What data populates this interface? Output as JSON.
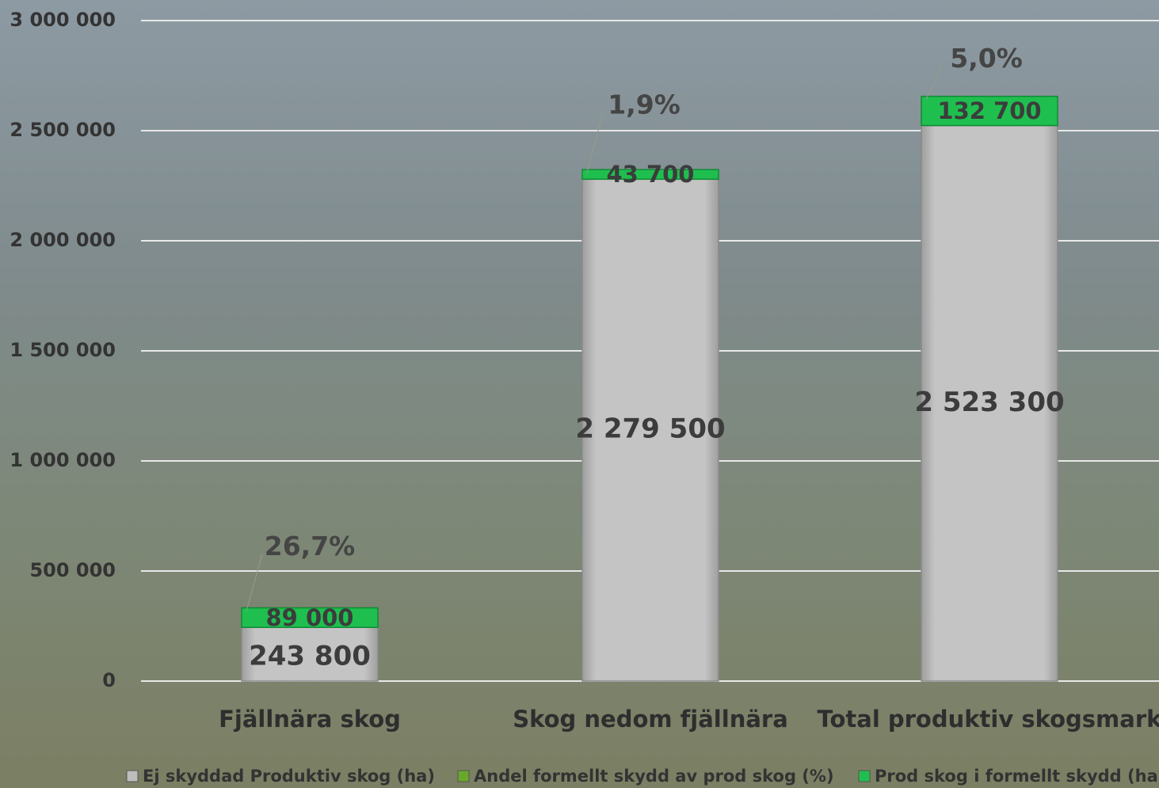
{
  "chart_data": {
    "type": "bar",
    "stacked": true,
    "categories": [
      "Fjällnära skog",
      "Skog nedom fjällnära",
      "Total produktiv skogsmark"
    ],
    "series": [
      {
        "name": "Ej skyddad Produktiv skog (ha)",
        "color": "#bdbdbd",
        "values": [
          243800,
          2279500,
          2523300
        ],
        "value_labels": [
          "243 800",
          "2 279 500",
          "2 523 300"
        ]
      },
      {
        "name": "Andel formellt skydd av prod skog (%)",
        "type": "label",
        "color": "#6aa82a",
        "values": [
          26.7,
          1.9,
          5.0
        ],
        "value_labels": [
          "26,7%",
          "1,9%",
          "5,0%"
        ]
      },
      {
        "name": "Prod skog i formellt skydd (ha)",
        "color": "#1fbf4f",
        "values": [
          89000,
          43700,
          132700
        ],
        "value_labels": [
          "89 000",
          "43 700",
          "132 700"
        ]
      }
    ],
    "ylim": [
      0,
      3000000
    ],
    "yticks": [
      0,
      {
        "value": 500000,
        "label": "500 000"
      },
      {
        "value": 1000000,
        "label": "1 000 000"
      },
      {
        "value": 1500000,
        "label": "1 500 000"
      },
      {
        "value": 2000000,
        "label": "2 000 000"
      },
      {
        "value": 2500000,
        "label": "2 500 000"
      },
      {
        "value": 3000000,
        "label": "3 000 000"
      }
    ],
    "grid": true,
    "legend": "bottom"
  }
}
